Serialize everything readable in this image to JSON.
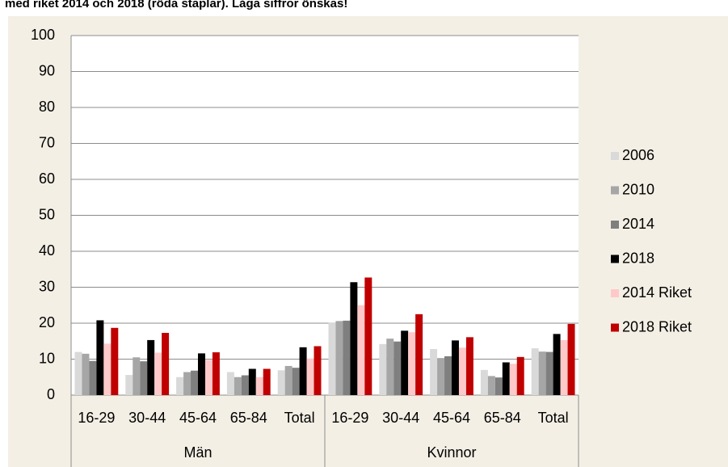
{
  "chart_data": {
    "type": "bar",
    "title": "med riket 2014 och 2018 (röda staplar). Låga siffror önskas!",
    "categories": [
      "16-29",
      "30-44",
      "45-64",
      "65-84",
      "Total",
      "16-29",
      "30-44",
      "45-64",
      "65-84",
      "Total"
    ],
    "groups": [
      "Män",
      "Kvinnor"
    ],
    "series": [
      {
        "name": "2006",
        "color": "#d9d9d9",
        "values": [
          12.0,
          5.6,
          5.0,
          6.4,
          6.9,
          20.2,
          14.2,
          12.8,
          7.0,
          13.0
        ]
      },
      {
        "name": "2010",
        "color": "#a6a6a6",
        "values": [
          11.5,
          10.5,
          6.4,
          5.0,
          8.1,
          20.6,
          15.7,
          10.3,
          5.3,
          12.1
        ]
      },
      {
        "name": "2014",
        "color": "#7f7f7f",
        "values": [
          9.5,
          9.4,
          6.8,
          5.5,
          7.6,
          20.7,
          14.9,
          10.8,
          4.9,
          12.0
        ]
      },
      {
        "name": "2018",
        "color": "#000000",
        "values": [
          20.8,
          15.3,
          11.6,
          7.3,
          13.3,
          31.4,
          17.9,
          15.2,
          9.1,
          17.0
        ]
      },
      {
        "name": "2014 Riket",
        "color": "#ffc9c9",
        "values": [
          14.3,
          11.8,
          9.8,
          5.0,
          10.2,
          25.0,
          17.5,
          13.2,
          8.7,
          15.3
        ]
      },
      {
        "name": "2018 Riket",
        "color": "#c00000",
        "values": [
          18.7,
          17.3,
          11.9,
          7.3,
          13.6,
          32.7,
          22.5,
          16.1,
          10.6,
          19.8
        ]
      }
    ],
    "ylim": [
      0,
      100
    ],
    "yticks": [
      0,
      10,
      20,
      30,
      40,
      50,
      60,
      70,
      80,
      90,
      100
    ],
    "grid": true,
    "legend": "right"
  }
}
